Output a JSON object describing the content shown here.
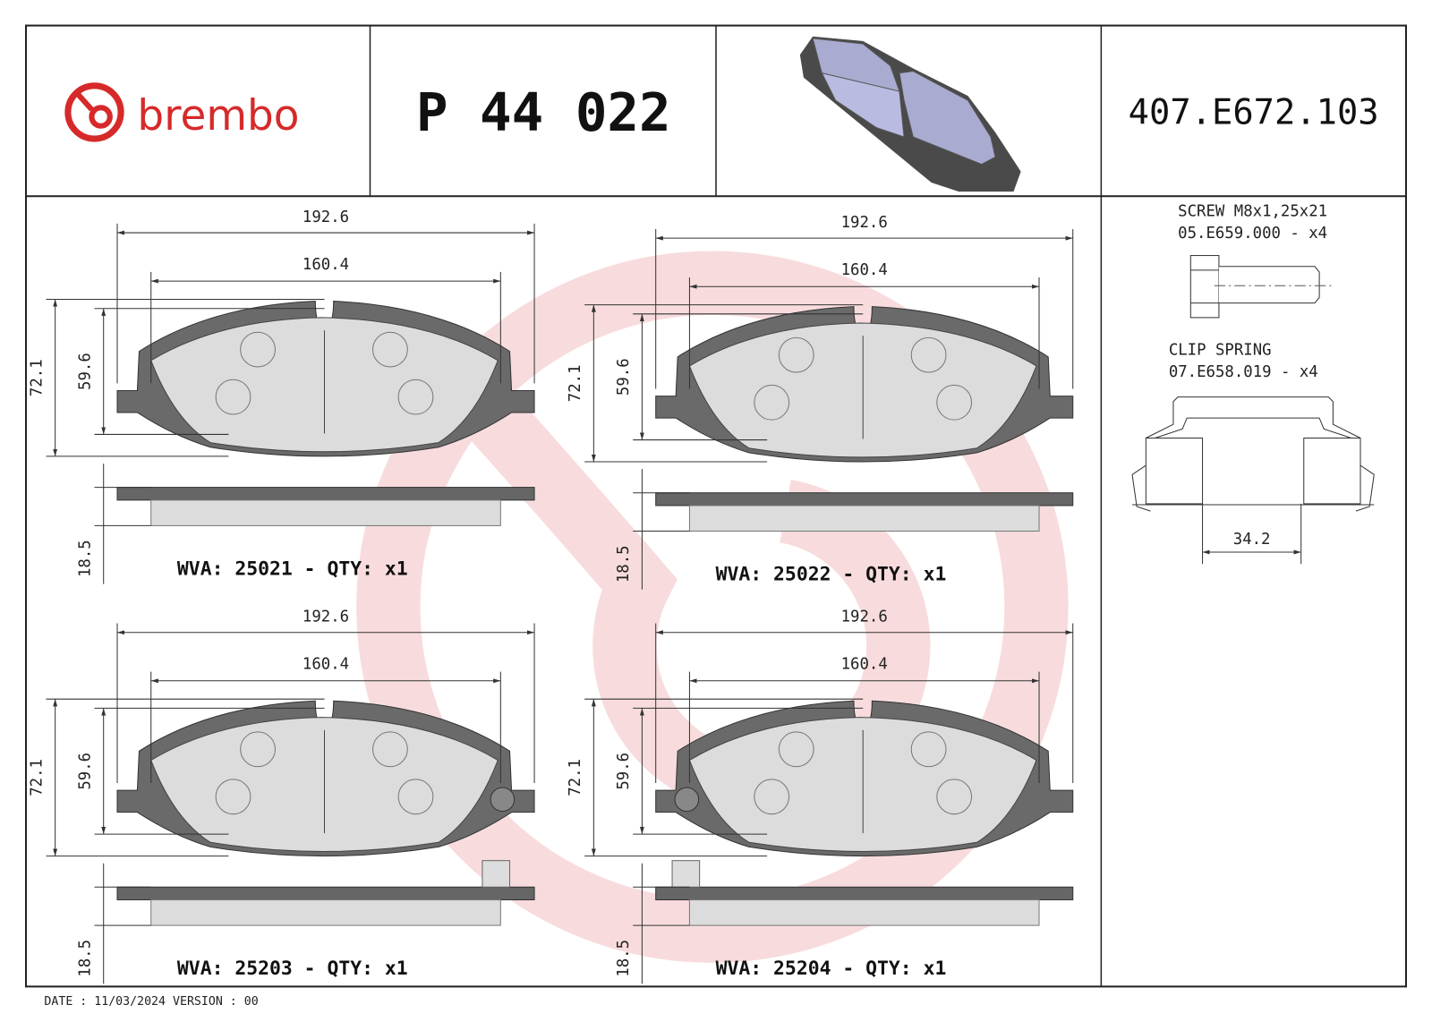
{
  "header": {
    "brand": "brembo",
    "part_number": "P 44 022",
    "reference": "407.E672.103"
  },
  "pads": [
    {
      "width": "192.6",
      "inner_width": "160.4",
      "height": "72.1",
      "friction_height": "59.6",
      "thickness": "18.5",
      "label": "WVA: 25021 - QTY: x1"
    },
    {
      "width": "192.6",
      "inner_width": "160.4",
      "height": "72.1",
      "friction_height": "59.6",
      "thickness": "18.5",
      "label": "WVA: 25022 - QTY: x1"
    },
    {
      "width": "192.6",
      "inner_width": "160.4",
      "height": "72.1",
      "friction_height": "59.6",
      "thickness": "18.5",
      "label": "WVA: 25203 - QTY: x1"
    },
    {
      "width": "192.6",
      "inner_width": "160.4",
      "height": "72.1",
      "friction_height": "59.6",
      "thickness": "18.5",
      "label": "WVA: 25204 - QTY: x1"
    }
  ],
  "accessories": {
    "screw": {
      "name": "SCREW M8x1,25x21",
      "code": "05.E659.000 - x4"
    },
    "clip": {
      "name": "CLIP SPRING",
      "code": "07.E658.019 - x4",
      "dimension": "34.2"
    }
  },
  "footer": {
    "date_version": "DATE : 11/03/2024 VERSION : 00"
  }
}
